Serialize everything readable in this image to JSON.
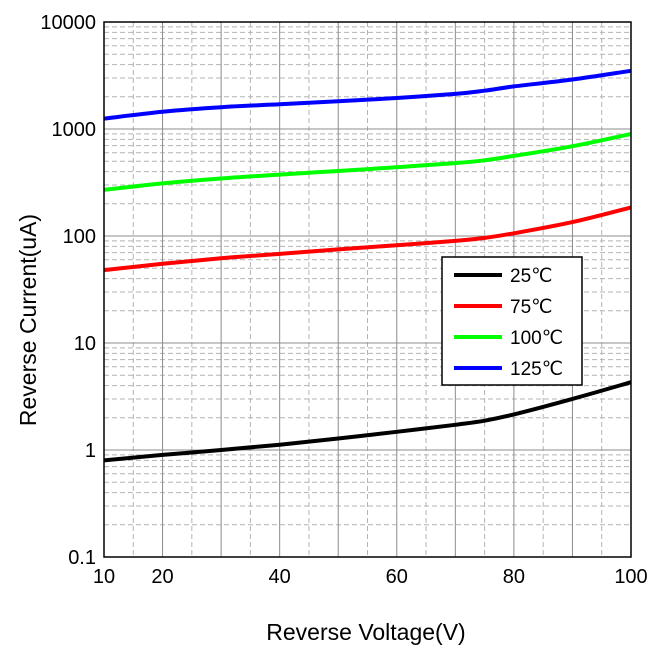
{
  "chart_data": {
    "type": "line",
    "xlabel": "Reverse Voltage(V)",
    "ylabel": "Reverse Current(uA)",
    "xlim": [
      10,
      100
    ],
    "ylim": [
      0.1,
      10000
    ],
    "yscale": "log",
    "grid": true,
    "legend_position": "center-right",
    "x_ticks": [
      {
        "value": 10,
        "label": "10"
      },
      {
        "value": 20,
        "label": "20"
      },
      {
        "value": 40,
        "label": "40"
      },
      {
        "value": 60,
        "label": "60"
      },
      {
        "value": 80,
        "label": "80"
      },
      {
        "value": 100,
        "label": "100"
      }
    ],
    "y_ticks": [
      {
        "value": 0.1,
        "label": "0.1"
      },
      {
        "value": 1,
        "label": "1"
      },
      {
        "value": 10,
        "label": "10"
      },
      {
        "value": 100,
        "label": "100"
      },
      {
        "value": 1000,
        "label": "1000"
      },
      {
        "value": 10000,
        "label": "10000"
      }
    ],
    "x": [
      10,
      20,
      30,
      40,
      50,
      60,
      70,
      75,
      80,
      90,
      100
    ],
    "series": [
      {
        "name": "25℃",
        "color": "#000000",
        "values": [
          0.8,
          0.9,
          1.0,
          1.12,
          1.28,
          1.48,
          1.72,
          1.88,
          2.15,
          3.0,
          4.3
        ]
      },
      {
        "name": "75℃",
        "color": "#ff0000",
        "values": [
          48,
          55,
          62,
          68,
          75,
          82,
          90,
          96,
          106,
          135,
          185
        ]
      },
      {
        "name": "100℃",
        "color": "#00ff00",
        "values": [
          270,
          310,
          345,
          375,
          405,
          440,
          480,
          510,
          560,
          690,
          900
        ]
      },
      {
        "name": "125℃",
        "color": "#0000ff",
        "values": [
          1250,
          1450,
          1600,
          1700,
          1820,
          1950,
          2130,
          2280,
          2500,
          2900,
          3500
        ]
      }
    ]
  }
}
